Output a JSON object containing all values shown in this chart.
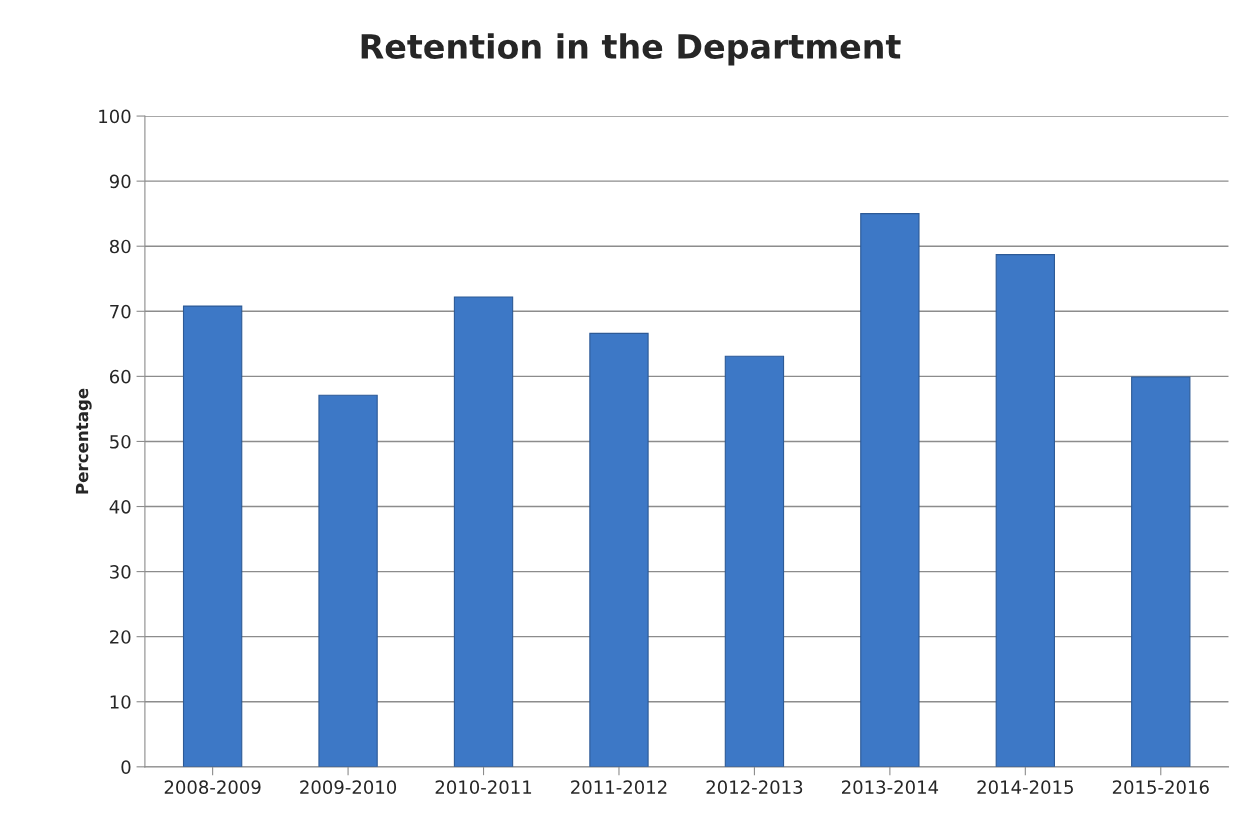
{
  "chart_data": {
    "type": "bar",
    "title": "Retention in the Department",
    "ylabel": "Percentage",
    "categories": [
      "2008-2009",
      "2009-2010",
      "2010-2011",
      "2011-2012",
      "2012-2013",
      "2013-2014",
      "2014-2015",
      "2015-2016"
    ],
    "values": [
      70.8,
      57.1,
      72.2,
      66.6,
      63.1,
      85.0,
      78.7,
      59.9
    ],
    "color": "#3d78c6",
    "ylim": [
      0,
      100
    ],
    "yticks": [
      0,
      10,
      20,
      30,
      40,
      50,
      60,
      70,
      80,
      90,
      100
    ],
    "grid": "y",
    "legend": false
  }
}
